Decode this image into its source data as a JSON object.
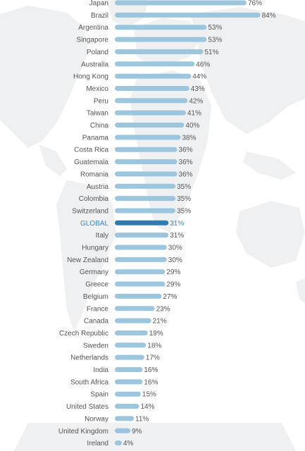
{
  "chart_data": {
    "type": "bar",
    "orientation": "horizontal",
    "title": "",
    "xlabel": "",
    "ylabel": "",
    "xlim": [
      0,
      100
    ],
    "grid": false,
    "legend": "none",
    "value_suffix": "%",
    "highlight_category": "GLOBAL",
    "colors": {
      "bar": "#9cc5de",
      "bar_highlight": "#2f7bb0",
      "label": "#555555",
      "label_highlight": "#3a8ac2",
      "map": "#eef0f2"
    },
    "categories": [
      "Japan",
      "Brazil",
      "Argentina",
      "Singapore",
      "Poland",
      "Australia",
      "Hong Kong",
      "Mexico",
      "Peru",
      "Taiwan",
      "China",
      "Panama",
      "Costa Rica",
      "Guatemala",
      "Romania",
      "Austria",
      "Colombia",
      "Switzerland",
      "GLOBAL",
      "Italy",
      "Hungary",
      "New Zealand",
      "Germany",
      "Greece",
      "Belgium",
      "France",
      "Canada",
      "Czech Republic",
      "Sweden",
      "Netherlands",
      "India",
      "South Africa",
      "Spain",
      "United States",
      "Norway",
      "United Kingdom",
      "Ireland"
    ],
    "values": [
      76,
      84,
      53,
      53,
      51,
      46,
      44,
      43,
      42,
      41,
      40,
      38,
      36,
      36,
      36,
      35,
      35,
      35,
      31,
      31,
      30,
      30,
      29,
      29,
      27,
      23,
      21,
      19,
      18,
      17,
      16,
      16,
      15,
      14,
      11,
      9,
      4
    ],
    "value_labels": [
      "76%",
      "84%",
      "53%",
      "53%",
      "51%",
      "46%",
      "44%",
      "43%",
      "42%",
      "41%",
      "40%",
      "38%",
      "36%",
      "36%",
      "36%",
      "35%",
      "35%",
      "35%",
      "31%",
      "31%",
      "30%",
      "30%",
      "29%",
      "29%",
      "27%",
      "23%",
      "21%",
      "19%",
      "18%",
      "17%",
      "16%",
      "16%",
      "15%",
      "14%",
      "11%",
      "9%",
      "4%"
    ]
  }
}
